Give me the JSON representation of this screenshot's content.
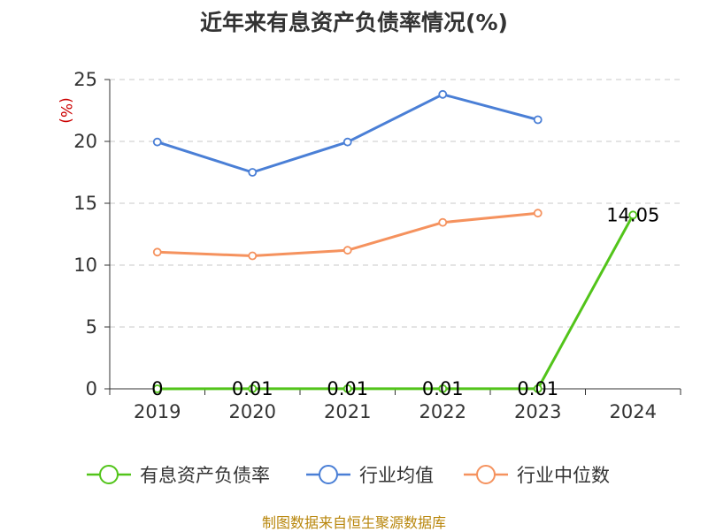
{
  "chart_data": {
    "type": "line",
    "title": "近年来有息资产负债率情况(%)",
    "ylabel": "(%)",
    "categories": [
      "2019",
      "2020",
      "2021",
      "2022",
      "2023",
      "2024"
    ],
    "ylim": [
      0,
      25
    ],
    "yticks": [
      0,
      5,
      10,
      15,
      20,
      25
    ],
    "grid": true,
    "legend_position": "bottom",
    "series": [
      {
        "name": "有息资产负债率",
        "color": "#52c41a",
        "values": [
          0,
          0.01,
          0.01,
          0.01,
          0.01,
          14.05
        ],
        "data_labels": [
          "0",
          "0.01",
          "0.01",
          "0.01",
          "0.01",
          "14.05"
        ]
      },
      {
        "name": "行业均值",
        "color": "#4a7fd6",
        "values": [
          19.95,
          17.5,
          19.95,
          23.8,
          21.75,
          null
        ]
      },
      {
        "name": "行业中位数",
        "color": "#f5925e",
        "values": [
          11.05,
          10.75,
          11.2,
          13.45,
          14.2,
          null
        ]
      }
    ]
  },
  "source_note": "制图数据来自恒生聚源数据库"
}
